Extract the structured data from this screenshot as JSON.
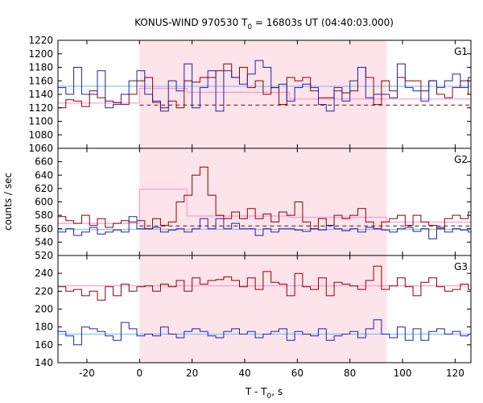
{
  "title": {
    "prefix": "KONUS-WIND 970530 T",
    "sub": "0",
    "suffix": " = 16803s UT (04:40:03.000)"
  },
  "xlabel": {
    "main": "T - T",
    "sub": "0",
    "suffix": ", s"
  },
  "ylabel": "counts / sec",
  "colors": {
    "red_series": "#8b0000",
    "blue_series": "#2020b0",
    "red_fit": "#ff88cc",
    "blue_fit": "#66bbff",
    "background_dash": "#8b0000",
    "shaded_interval": "#fde4ea"
  },
  "chart_data": {
    "type": "line",
    "step": true,
    "x_range": [
      -31,
      126
    ],
    "x_ticks": [
      "-20",
      "0",
      "20",
      "40",
      "60",
      "80",
      "100",
      "120"
    ],
    "x_tick_values": [
      -20,
      0,
      20,
      40,
      60,
      80,
      100,
      120
    ],
    "shaded_interval": [
      0,
      94
    ],
    "bin_edges_start": -31,
    "bin_width": 3.0,
    "panels": [
      {
        "name": "G1",
        "ylim": [
          1060,
          1220
        ],
        "y_ticks": [
          "1060",
          "1080",
          "1100",
          "1120",
          "1140",
          "1160",
          "1180",
          "1200",
          "1220"
        ],
        "y_tick_values": [
          1060,
          1080,
          1100,
          1120,
          1140,
          1160,
          1180,
          1200,
          1220
        ],
        "series": [
          {
            "color_key": "red_series",
            "values": [
              1120,
              1132,
              1130,
              1122,
              1145,
              1135,
              1130,
              1128,
              1125,
              1140,
              1160,
              1165,
              1128,
              1120,
              1130,
              1120,
              1160,
              1158,
              1165,
              1165,
              1175,
              1185,
              1165,
              1180,
              1150,
              1160,
              1140,
              1150,
              1125,
              1165,
              1160,
              1165,
              1145,
              1135,
              1135,
              1150,
              1142,
              1145,
              1180,
              1165,
              1125,
              1160,
              1145,
              1165,
              1160,
              1160,
              1145,
              1160,
              1140,
              1135,
              1150,
              1160,
              1140,
              1160,
              1180
            ]
          },
          {
            "color_key": "blue_series",
            "values": [
              1150,
              1140,
              1180,
              1140,
              1140,
              1175,
              1120,
              1125,
              1140,
              1160,
              1175,
              1140,
              1130,
              1115,
              1160,
              1145,
              1185,
              1120,
              1150,
              1175,
              1115,
              1175,
              1165,
              1155,
              1170,
              1190,
              1180,
              1150,
              1155,
              1130,
              1150,
              1155,
              1150,
              1125,
              1115,
              1145,
              1130,
              1160,
              1180,
              1135,
              1140,
              1140,
              1135,
              1185,
              1150,
              1145,
              1130,
              1160,
              1150,
              1160,
              1170,
              1150,
              1165,
              1175,
              1140
            ]
          }
        ],
        "fit_lines": [
          {
            "color_key": "blue_fit",
            "value": 1152,
            "x_from": -31,
            "x_to": 126
          },
          {
            "color_key": "red_fit",
            "value": 1127,
            "x_from": -31,
            "x_to": 0
          },
          {
            "color_key": "red_fit",
            "value": 1149,
            "x_from": 0,
            "x_to": 18
          },
          {
            "color_key": "red_fit",
            "value": 1143,
            "x_from": 18,
            "x_to": 57
          },
          {
            "color_key": "red_fit",
            "value": 1133,
            "x_from": 57,
            "x_to": 126
          }
        ],
        "dashed_line": {
          "color_key": "background_dash",
          "value": 1124,
          "x_from": 0,
          "x_to": 126
        }
      },
      {
        "name": "G2",
        "ylim": [
          520,
          680
        ],
        "y_ticks": [
          "520",
          "540",
          "560",
          "580",
          "600",
          "620",
          "640",
          "660"
        ],
        "y_tick_values": [
          520,
          540,
          560,
          580,
          600,
          620,
          640,
          660
        ],
        "series": [
          {
            "color_key": "red_series",
            "values": [
              578,
              572,
              568,
              580,
              565,
              575,
              562,
              568,
              572,
              570,
              572,
              560,
              575,
              565,
              570,
              600,
              610,
              640,
              652,
              610,
              580,
              575,
              585,
              575,
              590,
              575,
              582,
              570,
              585,
              580,
              600,
              570,
              560,
              575,
              565,
              580,
              575,
              580,
              590,
              570,
              560,
              570,
              575,
              580,
              565,
              580,
              570,
              565,
              560,
              575,
              580,
              575,
              585,
              590,
              575
            ]
          },
          {
            "color_key": "blue_series",
            "values": [
              555,
              560,
              550,
              555,
              562,
              552,
              555,
              558,
              555,
              578,
              560,
              560,
              562,
              555,
              558,
              560,
              555,
              560,
              575,
              560,
              575,
              560,
              568,
              560,
              560,
              550,
              560,
              555,
              560,
              560,
              558,
              556,
              560,
              558,
              565,
              560,
              557,
              560,
              555,
              562,
              560,
              558,
              555,
              560,
              562,
              556,
              560,
              545,
              562,
              555,
              560,
              558,
              555,
              562,
              556
            ]
          }
        ],
        "fit_lines": [
          {
            "color_key": "blue_fit",
            "value": 559,
            "x_from": -31,
            "x_to": 126
          },
          {
            "color_key": "red_fit",
            "value": 568,
            "x_from": -31,
            "x_to": 0
          },
          {
            "color_key": "red_fit",
            "value": 619,
            "x_from": 0,
            "x_to": 18
          },
          {
            "color_key": "red_fit",
            "value": 579,
            "x_from": 18,
            "x_to": 57
          },
          {
            "color_key": "red_fit",
            "value": 577,
            "x_from": 57,
            "x_to": 94
          },
          {
            "color_key": "red_fit",
            "value": 570,
            "x_from": 94,
            "x_to": 126
          }
        ],
        "dashed_line": {
          "color_key": "background_dash",
          "value": 564,
          "x_from": 0,
          "x_to": 126
        }
      },
      {
        "name": "G3",
        "ylim": [
          140,
          260
        ],
        "y_ticks": [
          "140",
          "160",
          "180",
          "200",
          "220",
          "240"
        ],
        "y_tick_values": [
          140,
          160,
          180,
          200,
          220,
          240
        ],
        "series": [
          {
            "color_key": "red_series",
            "values": [
              225,
              220,
              222,
              215,
              220,
              210,
              225,
              215,
              228,
              220,
              225,
              226,
              220,
              228,
              225,
              232,
              220,
              235,
              228,
              232,
              233,
              236,
              232,
              225,
              235,
              222,
              242,
              230,
              228,
              215,
              240,
              225,
              222,
              235,
              215,
              230,
              228,
              226,
              222,
              232,
              248,
              222,
              226,
              235,
              225,
              215,
              230,
              235,
              225,
              220,
              222,
              228,
              222,
              226,
              220
            ]
          },
          {
            "color_key": "blue_series",
            "values": [
              175,
              170,
              160,
              180,
              178,
              175,
              170,
              165,
              185,
              178,
              170,
              172,
              170,
              180,
              172,
              168,
              175,
              178,
              175,
              170,
              168,
              175,
              178,
              172,
              175,
              168,
              172,
              175,
              178,
              165,
              175,
              172,
              170,
              178,
              165,
              170,
              172,
              175,
              168,
              178,
              188,
              172,
              168,
              180,
              165,
              178,
              165,
              175,
              178,
              172,
              175,
              170,
              172,
              175,
              168
            ]
          }
        ],
        "fit_lines": [
          {
            "color_key": "blue_fit",
            "value": 172,
            "x_from": -31,
            "x_to": 126
          },
          {
            "color_key": "red_fit",
            "value": 226,
            "x_from": -31,
            "x_to": 126
          }
        ]
      }
    ]
  }
}
